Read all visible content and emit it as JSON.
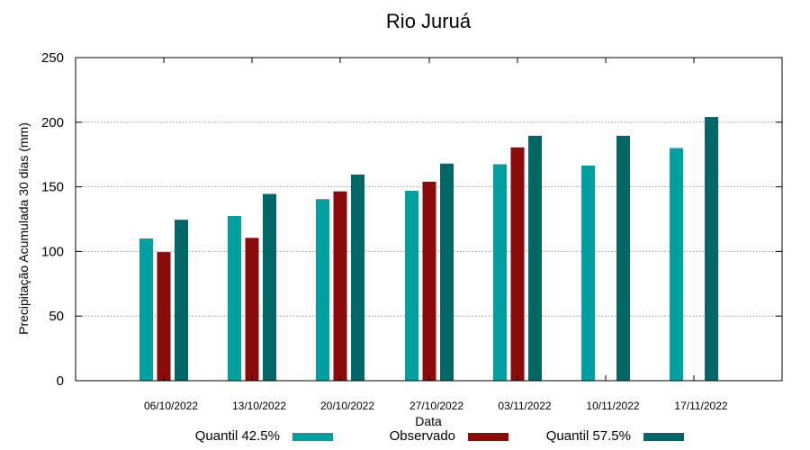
{
  "chart_data": {
    "type": "bar",
    "title": "Rio Juruá",
    "xlabel": "Data",
    "ylabel": "Precipitação Acumulada 30 dias (mm)",
    "ylim": [
      0,
      250
    ],
    "yticks": [
      0,
      50,
      100,
      150,
      200,
      250
    ],
    "grid": true,
    "legend_position": "bottom",
    "categories": [
      "06/10/2022",
      "13/10/2022",
      "20/10/2022",
      "27/10/2022",
      "03/11/2022",
      "10/11/2022",
      "17/11/2022"
    ],
    "series": [
      {
        "name": "Quantil 42.5%",
        "color": "#00a0a0",
        "values": [
          110,
          127.5,
          140.5,
          147,
          167.5,
          166.5,
          180
        ]
      },
      {
        "name": "Observado",
        "color": "#8b0a0a",
        "values": [
          99.5,
          110.5,
          146.5,
          154,
          180.5,
          null,
          null
        ]
      },
      {
        "name": "Quantil 57.5%",
        "color": "#006666",
        "values": [
          124.5,
          144.5,
          159.5,
          168,
          189.5,
          189.5,
          204
        ]
      }
    ]
  }
}
